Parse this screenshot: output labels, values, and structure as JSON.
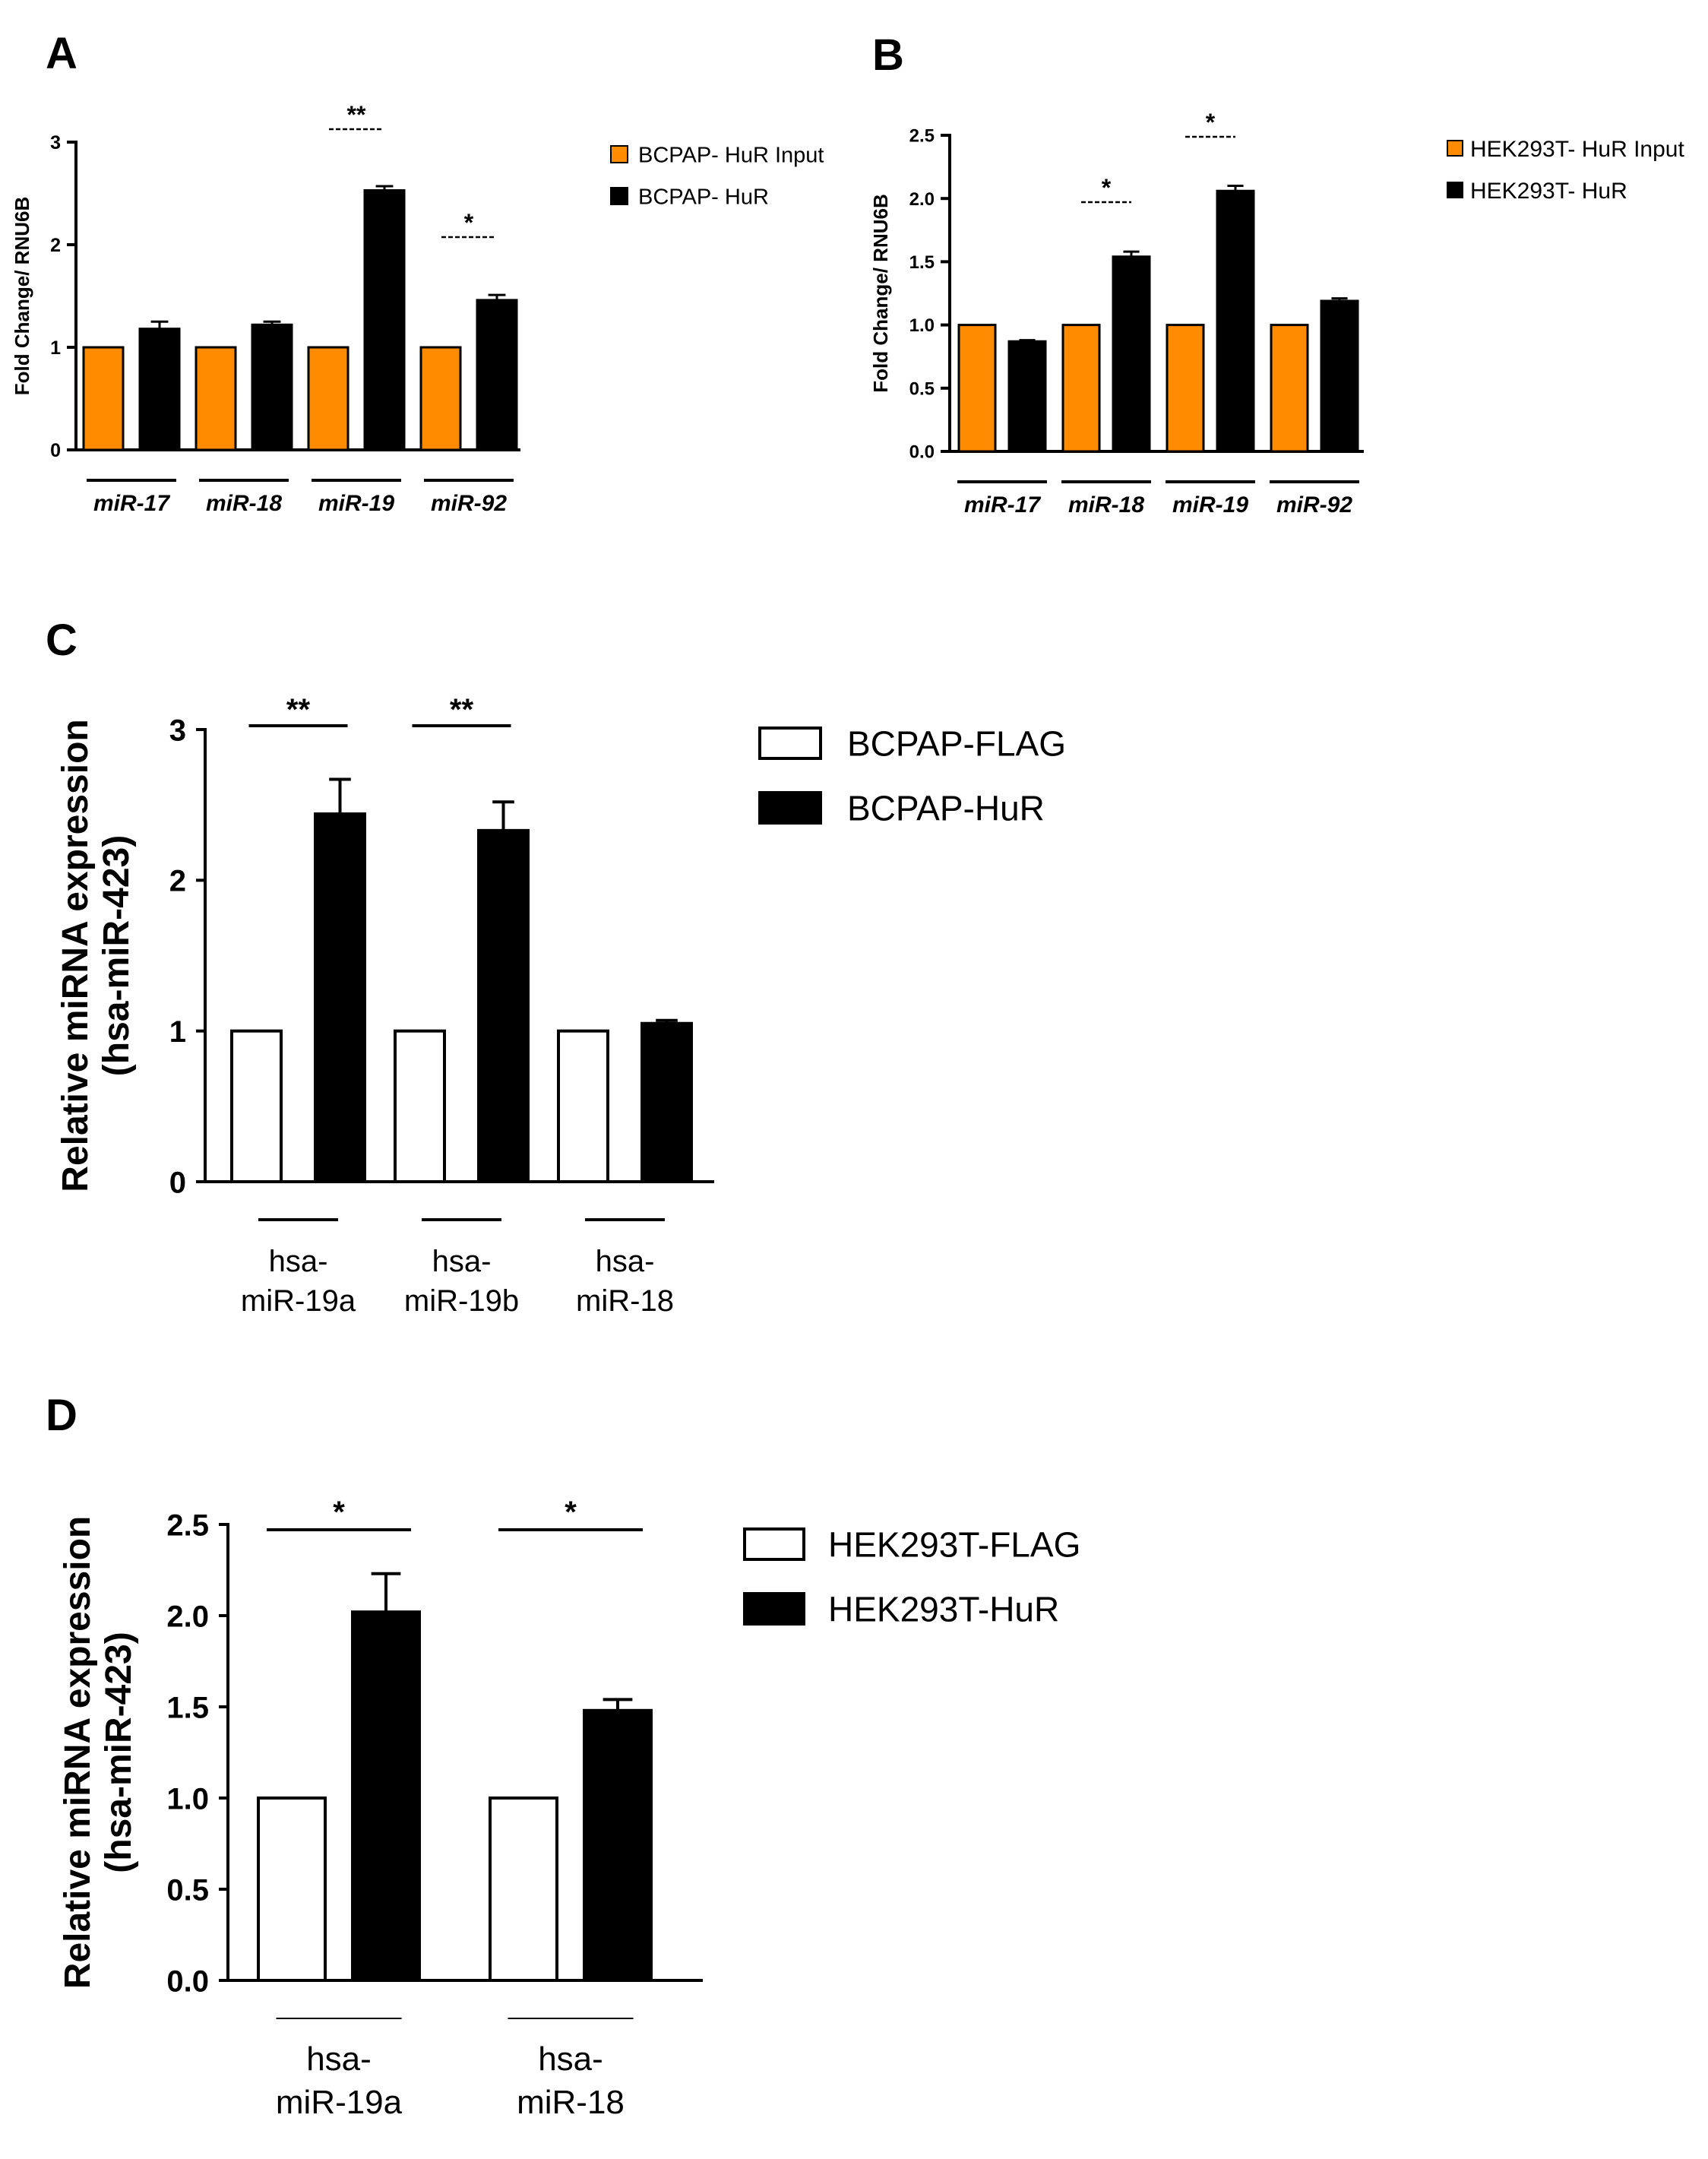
{
  "colors": {
    "orange": "#FF8C00",
    "black": "#000000",
    "white": "#FFFFFF"
  },
  "chart_data": [
    {
      "panel": "A",
      "type": "bar",
      "ylabel": "Fold Change/ RNU6B",
      "ylim": [
        0,
        3
      ],
      "yticks": [
        "0",
        "1",
        "2",
        "3"
      ],
      "categories": [
        "miR-17",
        "miR-18",
        "miR-19",
        "miR-92"
      ],
      "series": [
        {
          "name": "BCPAP- HuR Input",
          "color": "#FF8C00",
          "values": [
            1,
            1,
            1,
            1
          ],
          "errors": [
            0,
            0,
            0,
            0
          ]
        },
        {
          "name": "BCPAP- HuR",
          "color": "#000000",
          "values": [
            1.18,
            1.22,
            2.53,
            1.46
          ],
          "errors": [
            0.07,
            0.03,
            0.04,
            0.05
          ]
        }
      ],
      "significance": [
        {
          "category": 2,
          "label": "**"
        },
        {
          "category": 3,
          "label": "*"
        }
      ],
      "legend_position": "right"
    },
    {
      "panel": "B",
      "type": "bar",
      "ylabel": "Fold Change/ RNU6B",
      "ylim": [
        0,
        2.5
      ],
      "yticks": [
        "0.0",
        "0.5",
        "1.0",
        "1.5",
        "2.0",
        "2.5"
      ],
      "categories": [
        "miR-17",
        "miR-18",
        "miR-19",
        "miR-92"
      ],
      "series": [
        {
          "name": "HEK293T- HuR Input",
          "color": "#FF8C00",
          "values": [
            1,
            1,
            1,
            1
          ],
          "errors": [
            0,
            0,
            0,
            0
          ]
        },
        {
          "name": "HEK293T- HuR",
          "color": "#000000",
          "values": [
            0.87,
            1.54,
            2.06,
            1.19
          ],
          "errors": [
            0.01,
            0.04,
            0.04,
            0.02
          ]
        }
      ],
      "significance": [
        {
          "category": 1,
          "label": "*"
        },
        {
          "category": 2,
          "label": "*"
        }
      ],
      "legend_position": "right"
    },
    {
      "panel": "C",
      "type": "bar",
      "ylabel": [
        "Relative miRNA expression",
        "(hsa-miR-423)"
      ],
      "ylim": [
        0,
        3
      ],
      "yticks": [
        "0",
        "1",
        "2",
        "3"
      ],
      "categories": [
        [
          "hsa-",
          "miR-19a"
        ],
        [
          "hsa-",
          "miR-19b"
        ],
        [
          "hsa-",
          "miR-18"
        ]
      ],
      "series": [
        {
          "name": "BCPAP-FLAG",
          "color": "#FFFFFF",
          "values": [
            1,
            1,
            1
          ],
          "errors": [
            0,
            0,
            0
          ]
        },
        {
          "name": "BCPAP-HuR",
          "color": "#000000",
          "values": [
            2.44,
            2.33,
            1.05
          ],
          "errors": [
            0.23,
            0.19,
            0.02
          ]
        }
      ],
      "significance": [
        {
          "category": 0,
          "label": "**"
        },
        {
          "category": 1,
          "label": "**"
        }
      ],
      "legend_position": "right"
    },
    {
      "panel": "D",
      "type": "bar",
      "ylabel": [
        "Relative miRNA expression",
        "(hsa-miR-423)"
      ],
      "ylim": [
        0,
        2.5
      ],
      "yticks": [
        "0.0",
        "0.5",
        "1.0",
        "1.5",
        "2.0",
        "2.5"
      ],
      "categories": [
        [
          "hsa-",
          "miR-19a"
        ],
        [
          "hsa-",
          "miR-18"
        ]
      ],
      "series": [
        {
          "name": "HEK293T-FLAG",
          "color": "#FFFFFF",
          "values": [
            1,
            1
          ],
          "errors": [
            0,
            0
          ]
        },
        {
          "name": "HEK293T-HuR",
          "color": "#000000",
          "values": [
            2.02,
            1.48
          ],
          "errors": [
            0.21,
            0.06
          ]
        }
      ],
      "significance": [
        {
          "category": 0,
          "label": "*"
        },
        {
          "category": 1,
          "label": "*"
        }
      ],
      "legend_position": "right"
    }
  ]
}
